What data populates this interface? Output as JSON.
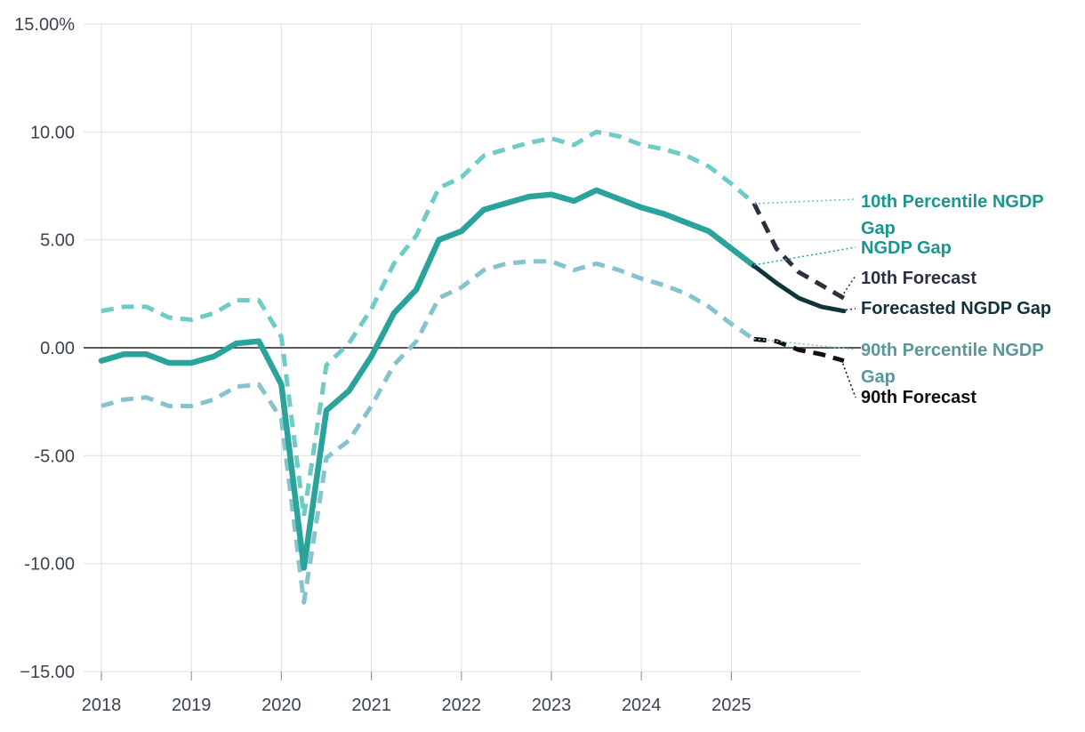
{
  "chart_data": {
    "type": "line",
    "title": "",
    "xlabel": "",
    "ylabel": "",
    "ylim": [
      -15,
      15
    ],
    "xlim": [
      2018,
      2026.45
    ],
    "y_ticks": [
      15,
      10,
      5,
      0,
      -5,
      -10,
      -15
    ],
    "y_tick_labels": [
      "15.00%",
      "10.00",
      "5.00",
      "0.00",
      "-5.00",
      "-10.00",
      "−15.00"
    ],
    "x_ticks": [
      2018,
      2019,
      2020,
      2021,
      2022,
      2023,
      2024,
      2025
    ],
    "x_tick_labels": [
      "2018",
      "2019",
      "2020",
      "2021",
      "2022",
      "2023",
      "2024",
      "2025"
    ],
    "grid": true,
    "legend_position": "right (inline labels with leader lines)",
    "series": [
      {
        "name": "10th Percentile NGDP Gap",
        "style": "dashed",
        "color": "#6fcbc6",
        "x": [
          2018.0,
          2018.25,
          2018.5,
          2018.75,
          2019.0,
          2019.25,
          2019.5,
          2019.75,
          2020.0,
          2020.25,
          2020.5,
          2020.75,
          2021.0,
          2021.25,
          2021.5,
          2021.75,
          2022.0,
          2022.25,
          2022.5,
          2022.75,
          2023.0,
          2023.25,
          2023.5,
          2023.75,
          2024.0,
          2024.25,
          2024.5,
          2024.75,
          2025.0,
          2025.25
        ],
        "values": [
          1.7,
          1.9,
          1.9,
          1.4,
          1.3,
          1.6,
          2.2,
          2.2,
          0.5,
          -7.8,
          -0.8,
          0.2,
          1.8,
          3.9,
          5.2,
          7.4,
          7.9,
          8.9,
          9.2,
          9.5,
          9.7,
          9.4,
          10.0,
          9.8,
          9.4,
          9.2,
          8.9,
          8.4,
          7.6,
          6.7
        ]
      },
      {
        "name": "NGDP Gap",
        "style": "solid",
        "color": "#2aa39b",
        "x": [
          2018.0,
          2018.25,
          2018.5,
          2018.75,
          2019.0,
          2019.25,
          2019.5,
          2019.75,
          2020.0,
          2020.25,
          2020.5,
          2020.75,
          2021.0,
          2021.25,
          2021.5,
          2021.75,
          2022.0,
          2022.25,
          2022.5,
          2022.75,
          2023.0,
          2023.25,
          2023.5,
          2023.75,
          2024.0,
          2024.25,
          2024.5,
          2024.75,
          2025.0,
          2025.25
        ],
        "values": [
          -0.6,
          -0.3,
          -0.3,
          -0.7,
          -0.7,
          -0.4,
          0.2,
          0.3,
          -1.7,
          -10.2,
          -2.9,
          -2.0,
          -0.4,
          1.6,
          2.7,
          5.0,
          5.4,
          6.4,
          6.7,
          7.0,
          7.1,
          6.8,
          7.3,
          6.9,
          6.5,
          6.2,
          5.8,
          5.4,
          4.6,
          3.8
        ]
      },
      {
        "name": "90th Percentile NGDP Gap",
        "style": "dashed",
        "color": "#85c4cc",
        "x": [
          2018.0,
          2018.25,
          2018.5,
          2018.75,
          2019.0,
          2019.25,
          2019.5,
          2019.75,
          2020.0,
          2020.25,
          2020.5,
          2020.75,
          2021.0,
          2021.25,
          2021.5,
          2021.75,
          2022.0,
          2022.25,
          2022.5,
          2022.75,
          2023.0,
          2023.25,
          2023.5,
          2023.75,
          2024.0,
          2024.25,
          2024.5,
          2024.75,
          2025.0,
          2025.25
        ],
        "values": [
          -2.7,
          -2.4,
          -2.3,
          -2.7,
          -2.7,
          -2.4,
          -1.8,
          -1.7,
          -3.3,
          -11.8,
          -5.1,
          -4.3,
          -2.7,
          -0.8,
          0.3,
          2.3,
          2.8,
          3.6,
          3.9,
          4.0,
          4.0,
          3.6,
          3.9,
          3.6,
          3.2,
          2.9,
          2.5,
          1.9,
          1.1,
          0.4
        ]
      },
      {
        "name": "10th Forecast",
        "style": "dashed",
        "color": "#2c3140",
        "x": [
          2025.25,
          2025.5,
          2025.75,
          2026.0,
          2026.25
        ],
        "values": [
          6.7,
          4.6,
          3.5,
          2.9,
          2.3
        ]
      },
      {
        "name": "Forecasted NGDP Gap",
        "style": "solid",
        "color": "#11333a",
        "x": [
          2025.25,
          2025.5,
          2025.75,
          2026.0,
          2026.25
        ],
        "values": [
          3.8,
          3.0,
          2.3,
          1.9,
          1.7
        ]
      },
      {
        "name": "90th Forecast",
        "style": "dashed",
        "color": "#111111",
        "x": [
          2025.25,
          2025.5,
          2025.75,
          2026.0,
          2026.25
        ],
        "values": [
          0.4,
          0.3,
          -0.1,
          -0.3,
          -0.6
        ]
      }
    ],
    "labels": [
      {
        "text": "10th Percentile NGDP",
        "text2": "Gap",
        "series": "10th Percentile NGDP Gap",
        "color": "#1a9690"
      },
      {
        "text": "NGDP Gap",
        "series": "NGDP Gap",
        "color": "#1a9690"
      },
      {
        "text": "10th Forecast",
        "series": "10th Forecast",
        "color": "#2c3140"
      },
      {
        "text": "Forecasted NGDP Gap",
        "series": "Forecasted NGDP Gap",
        "color": "#11333a"
      },
      {
        "text": "90th Percentile NGDP",
        "text2": "Gap",
        "series": "90th Percentile NGDP Gap",
        "color": "#5a979a"
      },
      {
        "text": "90th Forecast",
        "series": "90th Forecast",
        "color": "#111111"
      }
    ]
  }
}
